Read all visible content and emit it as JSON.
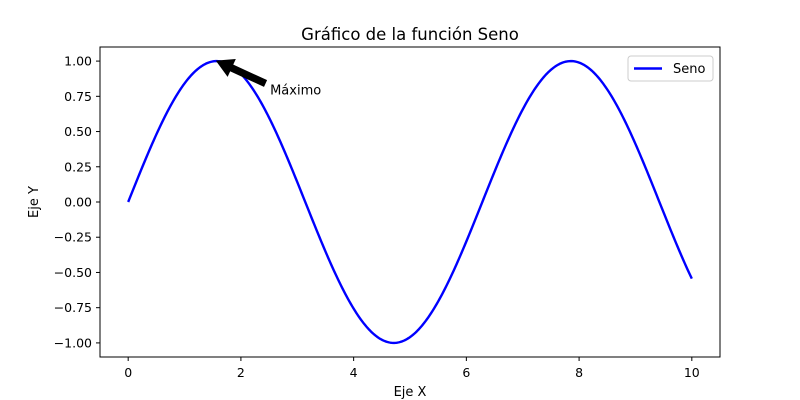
{
  "chart_data": {
    "type": "line",
    "title": "Gráfico de la función Seno",
    "xlabel": "Eje X",
    "ylabel": "Eje Y",
    "xlim": [
      -0.5,
      10.5
    ],
    "ylim": [
      -1.1,
      1.1
    ],
    "grid": false,
    "legend_position": "top-right",
    "x_ticks": [
      0,
      2,
      4,
      6,
      8,
      10
    ],
    "x_tick_labels": [
      "0",
      "2",
      "4",
      "6",
      "8",
      "10"
    ],
    "y_ticks": [
      -1.0,
      -0.75,
      -0.5,
      -0.25,
      0.0,
      0.25,
      0.5,
      0.75,
      1.0
    ],
    "y_tick_labels": [
      "−1.00",
      "−0.75",
      "−0.50",
      "−0.25",
      "0.00",
      "0.25",
      "0.50",
      "0.75",
      "1.00"
    ],
    "series": [
      {
        "name": "Seno",
        "color": "#0000ff",
        "function": "sin",
        "x_range": [
          0,
          10
        ],
        "points": [
          [
            0,
            0.0
          ],
          [
            0.5,
            0.479
          ],
          [
            1,
            0.841
          ],
          [
            1.5708,
            1.0
          ],
          [
            2,
            0.909
          ],
          [
            2.5,
            0.598
          ],
          [
            3,
            0.141
          ],
          [
            3.5,
            -0.351
          ],
          [
            4,
            -0.757
          ],
          [
            4.7124,
            -1.0
          ],
          [
            5,
            -0.959
          ],
          [
            5.5,
            -0.706
          ],
          [
            6,
            -0.279
          ],
          [
            6.5,
            0.215
          ],
          [
            7,
            0.657
          ],
          [
            7.854,
            1.0
          ],
          [
            8.5,
            0.798
          ],
          [
            9,
            0.412
          ],
          [
            9.5,
            -0.075
          ],
          [
            10,
            -0.544
          ]
        ]
      }
    ],
    "annotations": [
      {
        "text": "Máximo",
        "point": [
          1.5708,
          1.0
        ],
        "text_position": [
          2.5,
          0.8
        ],
        "arrow_color": "#000000"
      }
    ]
  }
}
